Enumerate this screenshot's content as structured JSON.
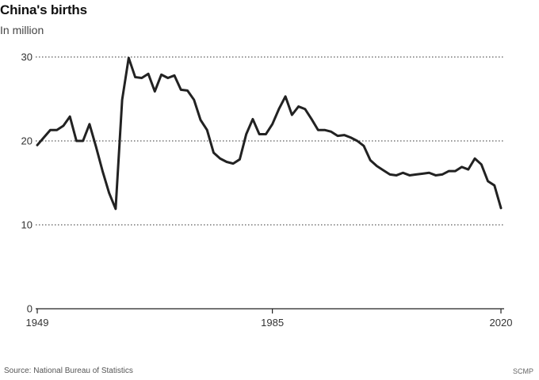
{
  "header": {
    "title": "China's births",
    "subtitle": "In million"
  },
  "footer": {
    "source": "Source: National Bureau of Statistics",
    "brand": "SCMP"
  },
  "colors": {
    "line": "#222222",
    "grid": "#333333",
    "text": "#333333"
  },
  "chart_data": {
    "type": "line",
    "title": "China's births",
    "ylabel": "In million",
    "xlabel": "",
    "xlim": [
      1949,
      2020
    ],
    "ylim": [
      0,
      30
    ],
    "yticks": [
      0,
      10,
      20,
      30
    ],
    "xticks": [
      1949,
      1985,
      2020
    ],
    "grid": true,
    "legend": "none",
    "x": [
      1949,
      1950,
      1951,
      1952,
      1953,
      1954,
      1955,
      1956,
      1957,
      1958,
      1959,
      1960,
      1961,
      1962,
      1963,
      1964,
      1965,
      1966,
      1967,
      1968,
      1969,
      1970,
      1971,
      1972,
      1973,
      1974,
      1975,
      1976,
      1977,
      1978,
      1979,
      1980,
      1981,
      1982,
      1983,
      1984,
      1985,
      1986,
      1987,
      1988,
      1989,
      1990,
      1991,
      1992,
      1993,
      1994,
      1995,
      1996,
      1997,
      1998,
      1999,
      2000,
      2001,
      2002,
      2003,
      2004,
      2005,
      2006,
      2007,
      2008,
      2009,
      2010,
      2011,
      2012,
      2013,
      2014,
      2015,
      2016,
      2017,
      2018,
      2019,
      2020
    ],
    "series": [
      {
        "values": [
          19.5,
          20.4,
          21.3,
          21.3,
          21.8,
          22.9,
          20.0,
          20.0,
          22.0,
          19.3,
          16.4,
          13.8,
          11.9,
          24.9,
          29.9,
          27.6,
          27.5,
          28.0,
          25.9,
          27.9,
          27.5,
          27.8,
          26.1,
          26.0,
          24.9,
          22.5,
          21.3,
          18.6,
          17.9,
          17.5,
          17.3,
          17.8,
          20.8,
          22.6,
          20.8,
          20.8,
          22.0,
          23.8,
          25.3,
          23.1,
          24.1,
          23.8,
          22.6,
          21.3,
          21.3,
          21.1,
          20.6,
          20.7,
          20.4,
          20.0,
          19.4,
          17.7,
          17.0,
          16.5,
          16.0,
          15.9,
          16.2,
          15.9,
          16.0,
          16.1,
          16.2,
          15.9,
          16.0,
          16.4,
          16.4,
          16.9,
          16.6,
          17.9,
          17.2,
          15.2,
          14.7,
          12.0
        ]
      }
    ]
  }
}
